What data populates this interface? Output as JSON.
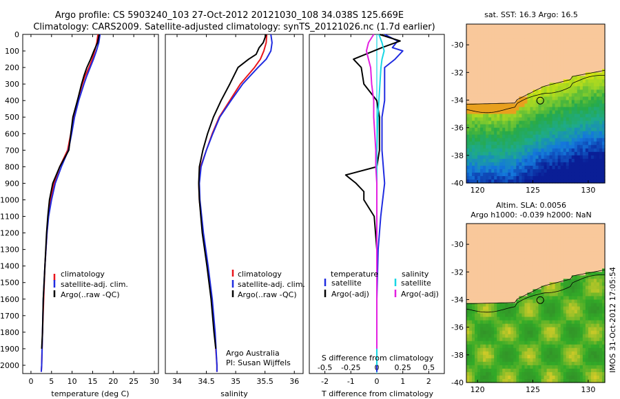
{
  "title": {
    "line1": "Argo profile: CS 5903240_103 27-Oct-2012 20121030_108 34.038S 125.669E",
    "line2": "Climatology: CARS2009. Satellite-adjusted climatology: synTS_20121026.nc (1.7d earlier)"
  },
  "colors": {
    "climatology": "#e8141b",
    "satellite": "#1f2be0",
    "argo": "#000000",
    "salinity_sat": "#17d6e4",
    "salinity_argo": "#e21fe0",
    "land": "#f9c89b"
  },
  "chart_data": [
    {
      "type": "line",
      "id": "temperature",
      "xlabel": "temperature (deg C)",
      "ylabel": "",
      "xlim": [
        -2,
        31
      ],
      "ylim": [
        0,
        2050
      ],
      "xticks": [
        "0",
        "5",
        "10",
        "15",
        "20",
        "25",
        "30"
      ],
      "yticks": [
        "0",
        "100",
        "200",
        "300",
        "400",
        "500",
        "600",
        "700",
        "800",
        "900",
        "1000",
        "1100",
        "1200",
        "1300",
        "1400",
        "1500",
        "1600",
        "1700",
        "1800",
        "1900",
        "2000"
      ],
      "legend": [
        "climatology",
        "satellite-adj. clim.",
        "Argo(..raw -QC)"
      ],
      "series": [
        {
          "name": "climatology",
          "depth": [
            0,
            50,
            100,
            150,
            200,
            250,
            300,
            400,
            500,
            600,
            700,
            800,
            900,
            1000,
            1100,
            1200,
            1400,
            1600,
            1800,
            2000,
            2040
          ],
          "values": [
            16.3,
            16.0,
            15.5,
            14.9,
            14.1,
            13.2,
            12.5,
            11.3,
            10.4,
            9.7,
            8.9,
            7.0,
            5.6,
            4.8,
            4.2,
            3.9,
            3.4,
            3.1,
            2.8,
            2.6,
            2.5
          ]
        },
        {
          "name": "satellite-adj. clim.",
          "depth": [
            0,
            50,
            100,
            150,
            200,
            250,
            300,
            400,
            500,
            600,
            700,
            800,
            900,
            1000,
            1100,
            1200,
            1400,
            1600,
            1800,
            2000,
            2040
          ],
          "values": [
            16.8,
            16.5,
            15.9,
            15.2,
            14.4,
            13.6,
            12.9,
            11.6,
            10.6,
            9.9,
            9.1,
            7.4,
            5.9,
            5.0,
            4.3,
            3.9,
            3.4,
            3.0,
            2.8,
            2.6,
            2.5
          ]
        },
        {
          "name": "Argo(..raw -QC)",
          "depth": [
            0,
            50,
            100,
            150,
            200,
            250,
            300,
            400,
            500,
            600,
            700,
            800,
            900,
            1000,
            1100,
            1200,
            1400,
            1600,
            1800,
            1900
          ],
          "values": [
            16.6,
            16.2,
            15.3,
            14.5,
            13.6,
            12.9,
            12.3,
            11.3,
            10.2,
            9.7,
            9.2,
            7.0,
            5.3,
            4.5,
            4.1,
            3.8,
            3.4,
            3.0,
            2.8,
            2.6
          ]
        }
      ]
    },
    {
      "type": "line",
      "id": "salinity",
      "xlabel": "salinity",
      "xlim": [
        33.8,
        36.15
      ],
      "ylim": [
        0,
        2050
      ],
      "xticks": [
        "34",
        "34.5",
        "35",
        "35.5",
        "36"
      ],
      "legend": [
        "climatology",
        "satellite-adj. clim.",
        "Argo(..raw -QC)"
      ],
      "annotation": [
        "Argo Australia",
        "PI: Susan Wijffels"
      ],
      "series": [
        {
          "name": "climatology",
          "depth": [
            0,
            50,
            100,
            150,
            200,
            300,
            400,
            500,
            600,
            700,
            800,
            900,
            1000,
            1200,
            1400,
            1600,
            1800,
            2000,
            2040
          ],
          "values": [
            35.53,
            35.52,
            35.48,
            35.42,
            35.32,
            35.08,
            34.9,
            34.72,
            34.6,
            34.5,
            34.4,
            34.37,
            34.38,
            34.44,
            34.52,
            34.59,
            34.64,
            34.68,
            34.68
          ]
        },
        {
          "name": "satellite-adj. clim.",
          "depth": [
            0,
            50,
            100,
            150,
            200,
            300,
            400,
            500,
            600,
            700,
            800,
            900,
            1000,
            1200,
            1400,
            1600,
            1800,
            2000,
            2040
          ],
          "values": [
            35.6,
            35.62,
            35.6,
            35.52,
            35.38,
            35.12,
            34.92,
            34.73,
            34.61,
            34.5,
            34.41,
            34.38,
            34.39,
            34.45,
            34.53,
            34.6,
            34.65,
            34.68,
            34.68
          ]
        },
        {
          "name": "Argo(..raw -QC)",
          "depth": [
            0,
            50,
            80,
            120,
            150,
            200,
            300,
            400,
            500,
            600,
            700,
            800,
            900,
            1000,
            1200,
            1400,
            1600,
            1800,
            1900
          ],
          "values": [
            35.52,
            35.47,
            35.4,
            35.35,
            35.22,
            35.04,
            34.9,
            34.75,
            34.62,
            34.52,
            34.44,
            34.38,
            34.37,
            34.38,
            34.43,
            34.51,
            34.58,
            34.63,
            34.66
          ]
        }
      ]
    },
    {
      "type": "line",
      "id": "difference",
      "xlabel": "T difference from climatology",
      "xlabel_top": "S difference from climatology",
      "xlim": [
        -2.6,
        2.6
      ],
      "ylim": [
        0,
        2050
      ],
      "xticks": [
        "-2",
        "-1",
        "0",
        "1",
        "2"
      ],
      "xticks_top": [
        "-0.5",
        "-0.25",
        "0",
        "0.25",
        "0.5"
      ],
      "legend_temperature_title": "temperature",
      "legend_salinity_title": "salinity",
      "legend_temperature": [
        "satellite",
        "Argo(-adj)"
      ],
      "legend_salinity": [
        "satellite",
        "Argo(-adj)"
      ],
      "series": [
        {
          "name": "T satellite",
          "depth": [
            0,
            40,
            80,
            100,
            150,
            200,
            300,
            400,
            500,
            700,
            900,
            1100,
            1300,
            1600,
            2000,
            2040
          ],
          "values": [
            0.3,
            0.8,
            0.6,
            1.0,
            0.7,
            0.3,
            0.3,
            0.3,
            0.2,
            0.2,
            0.3,
            0.15,
            0.05,
            0.0,
            0.0,
            0.0
          ]
        },
        {
          "name": "T Argo(-adj)",
          "depth": [
            0,
            40,
            80,
            150,
            200,
            300,
            400,
            500,
            700,
            800,
            850,
            900,
            950,
            1000,
            1100,
            1300,
            1600,
            1900
          ],
          "values": [
            0.1,
            0.9,
            0.2,
            -0.9,
            -0.6,
            -0.5,
            0.0,
            0.1,
            0.1,
            0.0,
            -1.2,
            -0.8,
            -0.5,
            -0.5,
            -0.1,
            0.0,
            0.0,
            0.0
          ]
        },
        {
          "name": "S satellite",
          "depth": [
            0,
            50,
            100,
            150,
            200,
            300,
            400,
            500,
            700,
            900,
            1100,
            1400,
            1700,
            2000
          ],
          "values": [
            0.02,
            0.05,
            0.07,
            0.05,
            0.04,
            0.03,
            0.02,
            0.01,
            0.0,
            0.0,
            0.0,
            0.0,
            0.0,
            0.0
          ]
        },
        {
          "name": "S Argo(-adj)",
          "depth": [
            0,
            50,
            100,
            150,
            200,
            300,
            400,
            500,
            600,
            700,
            800,
            900,
            1000,
            1200,
            1400,
            1600,
            1800,
            1900
          ],
          "values": [
            -0.03,
            -0.08,
            -0.1,
            -0.08,
            -0.06,
            -0.05,
            -0.03,
            -0.03,
            -0.02,
            -0.01,
            -0.01,
            0.0,
            0.0,
            0.0,
            0.0,
            0.0,
            0.0,
            0.0
          ]
        }
      ]
    },
    {
      "type": "heatmap",
      "id": "sst_map",
      "title": "sat. SST: 16.3 Argo: 16.5",
      "xlim": [
        119,
        131.5
      ],
      "ylim": [
        -40,
        -28.5
      ],
      "xticks": [
        "120",
        "125",
        "130"
      ],
      "yticks": [
        "-30",
        "-32",
        "-34",
        "-36",
        "-38",
        "-40"
      ],
      "argo_position": [
        125.669,
        -34.038
      ]
    },
    {
      "type": "heatmap",
      "id": "sla_map",
      "title_line1": "Altim. SLA: 0.0056",
      "title_line2": "Argo h1000: -0.039 h2000: NaN",
      "xlim": [
        119,
        131.5
      ],
      "ylim": [
        -40,
        -28.5
      ],
      "xticks": [
        "120",
        "125",
        "130"
      ],
      "yticks": [
        "-30",
        "-32",
        "-34",
        "-36",
        "-38",
        "-40"
      ],
      "argo_position": [
        125.669,
        -34.038
      ]
    }
  ],
  "footer_stamp": "IMOS 31-Oct-2012 17:05:54"
}
